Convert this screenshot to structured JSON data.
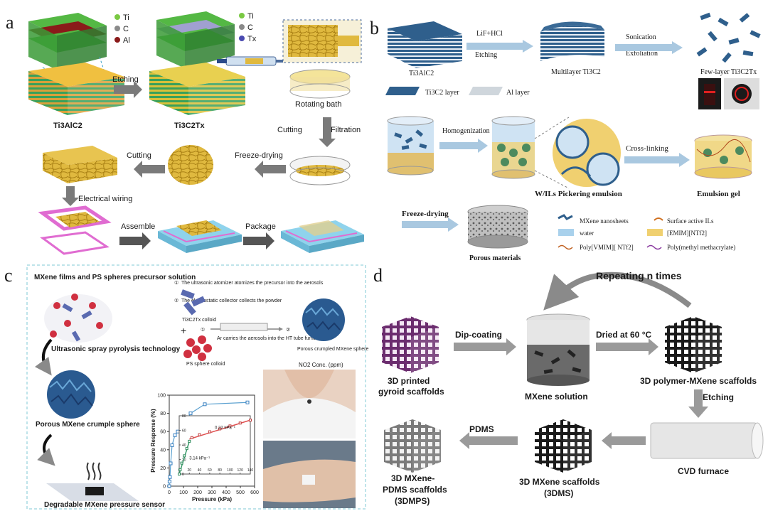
{
  "panels": {
    "a": {
      "letter": "a",
      "legend1": [
        "Ti",
        "C",
        "Al"
      ],
      "legend2": [
        "Ti",
        "C",
        "Tx"
      ],
      "formula1": "Ti3AlC2",
      "formula2": "Ti3C2Tx",
      "etching": "Etching",
      "rotating_bath": "Rotating bath",
      "cutting_filtration": "Cutting",
      "filtration": "Filtration",
      "freeze_drying": "Freeze-drying",
      "cutting": "Cutting",
      "electrical_wiring": "Electrical wiring",
      "assemble": "Assemble",
      "package": "Package"
    },
    "b": {
      "letter": "b",
      "formula1": "Ti3AlC2",
      "lif": "LiF+HCl",
      "etching": "Etching",
      "multilayer": "Multilayer Ti3C2",
      "sonication": "Sonication",
      "exfoliation": "Exfoliation",
      "fewlayer": "Few-layer Ti3C2Tx",
      "ti3c2_layer": "Ti3C2 layer",
      "al_layer": "Al layer",
      "homogenization": "Homogenization",
      "crosslinking": "Cross-linking",
      "pickering": "W/ILs Pickering emulsion",
      "emulsion_gel": "Emulsion gel",
      "freeze_drying": "Freeze-drying",
      "porous": "Porous materials",
      "legend": {
        "mxene": "MXene nanosheets",
        "surface": "Surface active ILs",
        "water": "water",
        "emim": "[EMIM][NTf2]",
        "poly_vmim": "Poly[VMIM][ NTf2]",
        "pmma": "Poly(methyl methacrylate)"
      }
    },
    "c": {
      "letter": "c",
      "title": "MXene films and PS spheres precursor solution",
      "step1": "The ultrasonic atomizer atomizes the precursor into the aerosols",
      "step2": "The electrostatic collector collects the powder",
      "colloid1": "Ti3C2Tx colloid",
      "colloid2": "PS sphere colloid",
      "ar_text": "Ar carries the aerosols into the HT tube furnace",
      "porous_sphere": "Porous crumpled MXene sphere",
      "no2": "NO2 Conc. (ppm)",
      "usp": "Ultrasonic spray pyrolysis technology",
      "crumple": "Porous MXene crumple sphere",
      "sensor": "Degradable MXene pressure sensor"
    },
    "d": {
      "letter": "d",
      "repeating": "Repeating n times",
      "dipcoating": "Dip-coating",
      "dried": "Dried at 60 °C",
      "printed1": "3D printed",
      "printed2": "gyroid scaffolds",
      "mxene_solution": "MXene solution",
      "polymer_scaffolds": "3D polymer-MXene scaffolds",
      "etching": "Etching",
      "cvd": "CVD furnace",
      "mxene_scaffolds1": "3D MXene scaffolds",
      "mxene_scaffolds2": "(3DMS)",
      "pdms": "PDMS",
      "pdms1": "3D MXene-",
      "pdms2": "PDMS scaffolds",
      "pdms3": "(3DMPS)"
    }
  },
  "chart_data": {
    "type": "scatter",
    "xlabel": "Pressure (kPa)",
    "ylabel": "Pressure Response (%)",
    "xlim": [
      0,
      600
    ],
    "ylim": [
      0,
      100
    ],
    "xticks": [
      0,
      100,
      200,
      300,
      400,
      500,
      600
    ],
    "yticks": [
      0,
      20,
      40,
      60,
      80,
      100
    ],
    "series": [
      {
        "x": [
          0,
          2,
          5,
          10,
          20,
          40,
          60,
          100,
          150,
          250,
          550
        ],
        "y": [
          0,
          5,
          10,
          25,
          45,
          56,
          60,
          66,
          80,
          90,
          92
        ]
      }
    ],
    "inset": {
      "xlim": [
        0,
        140
      ],
      "ylim": [
        0,
        80
      ],
      "xticks": [
        0,
        20,
        40,
        60,
        80,
        100,
        120,
        140
      ],
      "yticks": [
        0,
        20,
        40,
        60,
        80
      ],
      "annotations": [
        "0.22 kPa⁻¹",
        "3.14 kPa⁻¹"
      ],
      "series": [
        {
          "x": [
            0,
            2,
            5,
            10,
            15,
            20,
            25,
            40,
            60,
            80,
            100,
            120,
            140
          ],
          "y": [
            0,
            6,
            15,
            25,
            35,
            45,
            50,
            54,
            58,
            62,
            66,
            70,
            74
          ]
        }
      ]
    }
  },
  "colors": {
    "arrow": "#8a8a8a",
    "dashed_border": "#7fc8d6",
    "mxene_blue": "#2d5d86",
    "gold": "#d9b43a",
    "cyan": "#8fd3ec",
    "pink": "#e06cd1"
  }
}
